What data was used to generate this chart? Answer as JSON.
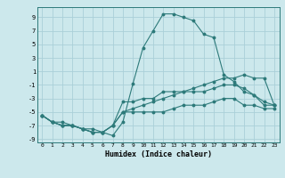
{
  "xlabel": "Humidex (Indice chaleur)",
  "bg_color": "#cce8ec",
  "grid_color": "#aad0d8",
  "line_color": "#2d7a7a",
  "xlim": [
    -0.5,
    23.5
  ],
  "ylim": [
    -9.5,
    10.5
  ],
  "xticks": [
    0,
    1,
    2,
    3,
    4,
    5,
    6,
    7,
    8,
    9,
    10,
    11,
    12,
    13,
    14,
    15,
    16,
    17,
    18,
    19,
    20,
    21,
    22,
    23
  ],
  "yticks": [
    -9,
    -7,
    -5,
    -3,
    -1,
    1,
    3,
    5,
    7,
    9
  ],
  "line1_x": [
    0,
    1,
    2,
    3,
    4,
    5,
    6,
    7,
    8,
    9,
    10,
    11,
    12,
    13,
    14,
    15,
    16,
    17,
    18,
    19,
    20,
    21,
    22,
    23
  ],
  "line1_y": [
    -5.5,
    -6.5,
    -6.5,
    -7,
    -7.5,
    -7.5,
    -8,
    -8.5,
    -6.5,
    -0.8,
    4.5,
    7,
    9.5,
    9.5,
    9,
    8.5,
    6.5,
    6,
    0.5,
    -0.5,
    -2,
    -2.5,
    -3.5,
    -4
  ],
  "line2_x": [
    0,
    1,
    2,
    3,
    4,
    5,
    6,
    7,
    8,
    9,
    10,
    11,
    12,
    13,
    14,
    15,
    16,
    17,
    18,
    19,
    20,
    21,
    22,
    23
  ],
  "line2_y": [
    -5.5,
    -6.5,
    -7,
    -7,
    -7.5,
    -8,
    -8,
    -7,
    -3.5,
    -3.5,
    -3,
    -3,
    -2,
    -2,
    -2,
    -2,
    -2,
    -1.5,
    -1,
    -1,
    -1.5,
    -2.5,
    -4,
    -4
  ],
  "line3_x": [
    0,
    1,
    2,
    3,
    4,
    5,
    6,
    7,
    8,
    9,
    10,
    11,
    12,
    13,
    14,
    15,
    16,
    17,
    18,
    19,
    20,
    21,
    22,
    23
  ],
  "line3_y": [
    -5.5,
    -6.5,
    -7,
    -7,
    -7.5,
    -8,
    -8,
    -7,
    -5,
    -4.5,
    -4,
    -3.5,
    -3,
    -2.5,
    -2,
    -1.5,
    -1,
    -0.5,
    0,
    0,
    0.5,
    0,
    0,
    -4
  ],
  "line4_x": [
    0,
    1,
    2,
    3,
    4,
    5,
    6,
    7,
    8,
    9,
    10,
    11,
    12,
    13,
    14,
    15,
    16,
    17,
    18,
    19,
    20,
    21,
    22,
    23
  ],
  "line4_y": [
    -5.5,
    -6.5,
    -7,
    -7,
    -7.5,
    -8,
    -8,
    -7,
    -5,
    -5,
    -5,
    -5,
    -5,
    -4.5,
    -4,
    -4,
    -4,
    -3.5,
    -3,
    -3,
    -4,
    -4,
    -4.5,
    -4.5
  ]
}
